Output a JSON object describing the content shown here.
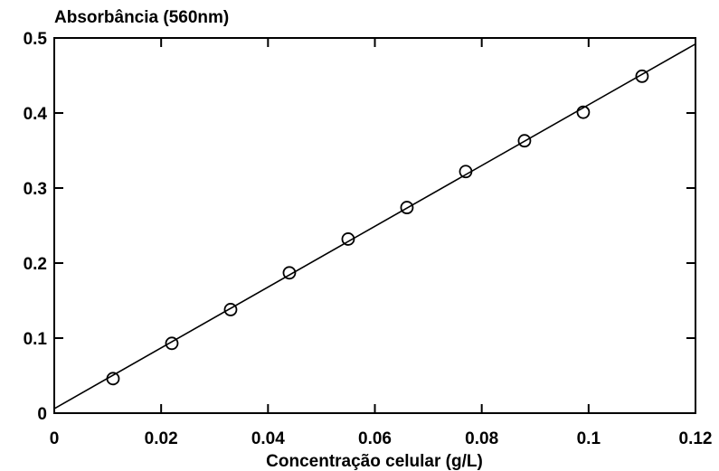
{
  "chart_data": {
    "type": "scatter",
    "title": "",
    "ylabel": "Absorbância (560nm)",
    "xlabel": "Concentração celular (g/L)",
    "xlim": [
      0,
      0.12
    ],
    "ylim": [
      0,
      0.5
    ],
    "xticks": [
      "0",
      "0.02",
      "0.04",
      "0.06",
      "0.08",
      "0.1",
      "0.12"
    ],
    "yticks": [
      "0",
      "0.1",
      "0.2",
      "0.3",
      "0.4",
      "0.5"
    ],
    "grid": false,
    "legend": "none",
    "series": [
      {
        "marker": "open-circle",
        "x": [
          0.011,
          0.022,
          0.033,
          0.044,
          0.055,
          0.066,
          0.077,
          0.088,
          0.099,
          0.11
        ],
        "y": [
          0.046,
          0.093,
          0.138,
          0.187,
          0.232,
          0.274,
          0.322,
          0.363,
          0.401,
          0.449
        ]
      }
    ],
    "fit_line": {
      "x": [
        0,
        0.12
      ],
      "y": [
        0.006,
        0.492
      ]
    }
  }
}
